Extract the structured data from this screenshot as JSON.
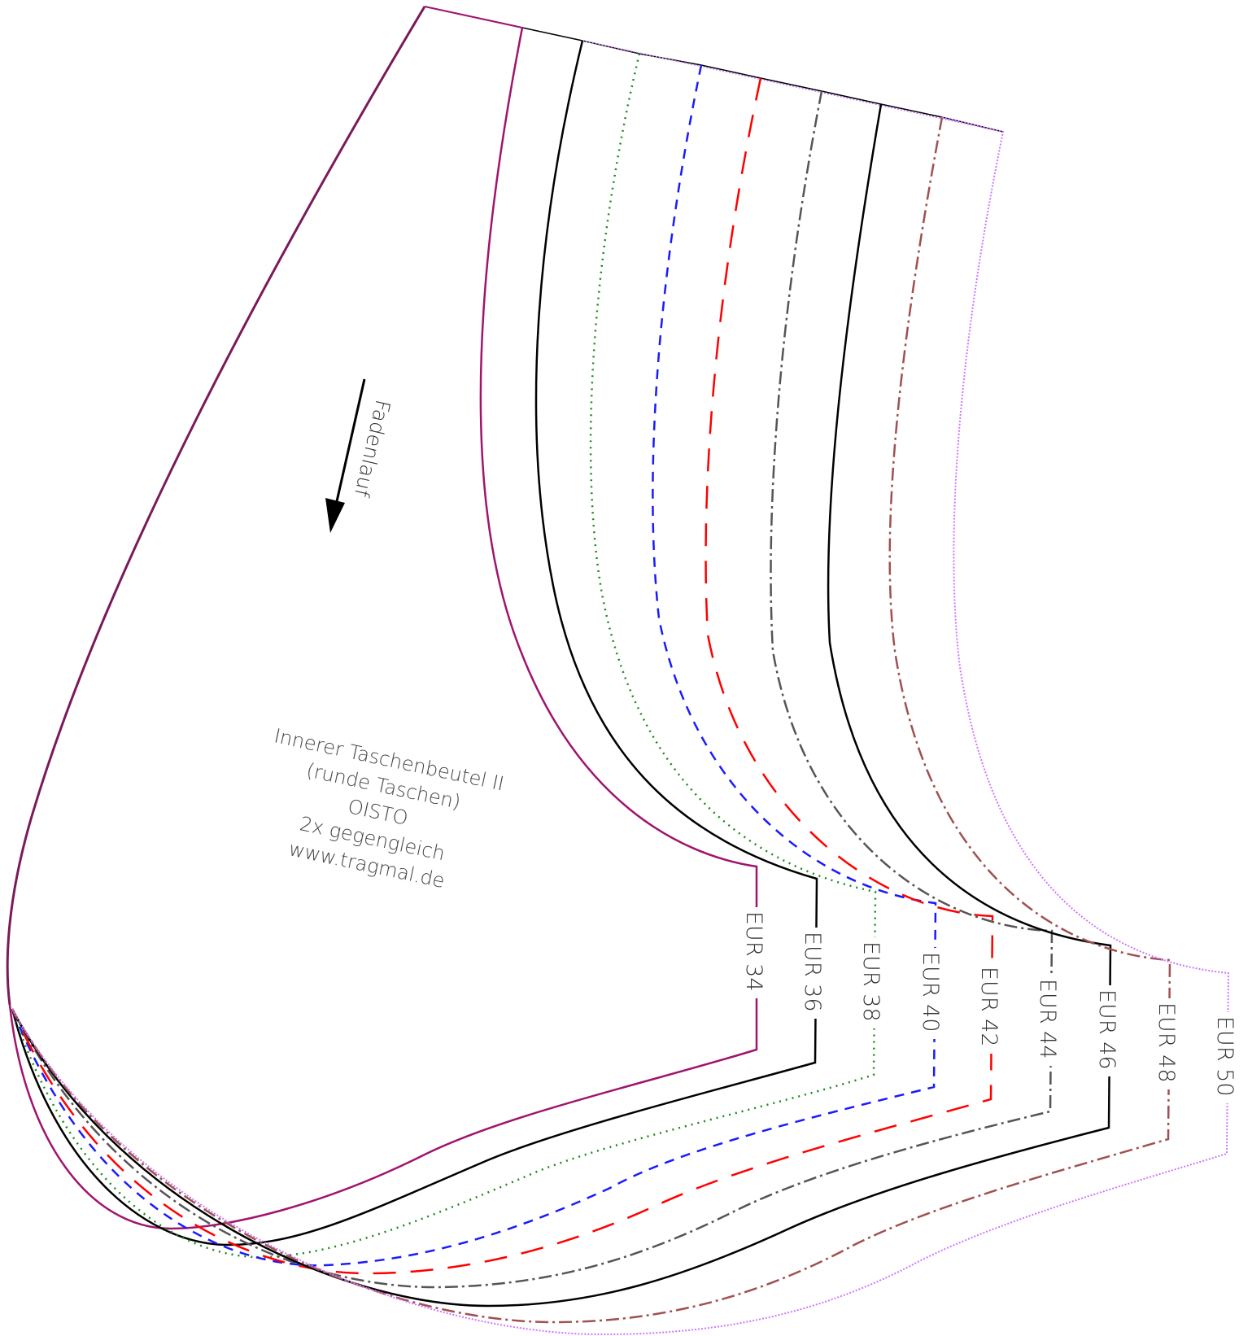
{
  "pattern": {
    "grain_label": "Fadenlauf",
    "info_lines": [
      "Innerer Taschenbeutel II",
      "(runde Taschen)",
      "OISTO",
      "2x gegengleich",
      "www.tragmal.de"
    ],
    "sizes": [
      {
        "label": "EUR 34",
        "color": "#a0146e",
        "style": "solid"
      },
      {
        "label": "EUR 36",
        "color": "#000000",
        "style": "solid-ticks"
      },
      {
        "label": "EUR 38",
        "color": "#1a8a1a",
        "style": "dotted"
      },
      {
        "label": "EUR 40",
        "color": "#1a1aff",
        "style": "dashed"
      },
      {
        "label": "EUR 42",
        "color": "#ff0000",
        "style": "long-dashed"
      },
      {
        "label": "EUR 44",
        "color": "#555555",
        "style": "dash-dot"
      },
      {
        "label": "EUR 46",
        "color": "#000000",
        "style": "solid"
      },
      {
        "label": "EUR 48",
        "color": "#a05050",
        "style": "dash-dot"
      },
      {
        "label": "EUR 50",
        "color": "#cc77ff",
        "style": "fine-dotted"
      }
    ]
  }
}
